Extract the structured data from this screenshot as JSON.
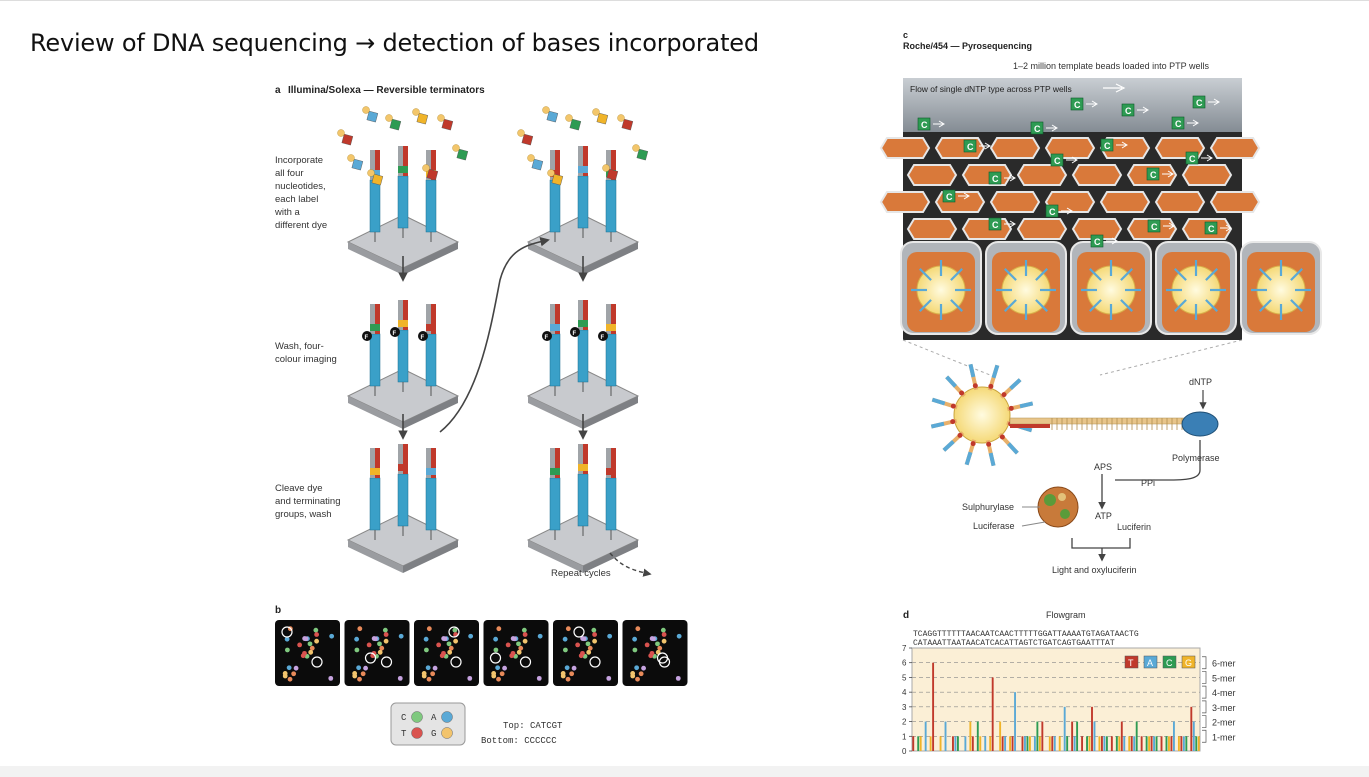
{
  "slide": {
    "title": "Review of DNA sequencing → detection of bases incorporated"
  },
  "panel_a": {
    "letter": "a",
    "heading": "Illumina/Solexa — Reversible terminators",
    "steps": [
      "Incorporate all four nucleotides, each label with a different dye",
      "Wash, four-colour imaging",
      "Cleave dye and terminating groups, wash"
    ],
    "repeat": "Repeat cycles",
    "base_letters": [
      "C",
      "A",
      "G",
      "T"
    ],
    "dye_letter": "F"
  },
  "panel_b": {
    "letter": "b",
    "legend": [
      {
        "base": "C",
        "color": "#7fc97f"
      },
      {
        "base": "A",
        "color": "#5aa9d6"
      },
      {
        "base": "T",
        "color": "#d9534f"
      },
      {
        "base": "G",
        "color": "#f2c46d"
      }
    ],
    "top_label": "Top: CATCGT",
    "bottom_label": "Bottom: CCCCCC"
  },
  "panel_c": {
    "letter": "c",
    "heading": "Roche/454 — Pyrosequencing",
    "beads_note": "1–2 million template beads loaded into PTP wells",
    "flow_note": "Flow of single dNTP type across PTP wells",
    "dntp_letter": "C",
    "labels": {
      "dntp": "dNTP",
      "polymerase": "Polymerase",
      "aps": "APS",
      "ppi": "PPi",
      "sulphurylase": "Sulphurylase",
      "luciferase": "Luciferase",
      "atp": "ATP",
      "luciferin": "Luciferin",
      "light": "Light and oxyluciferin"
    }
  },
  "panel_d": {
    "letter": "d",
    "title": "Flowgram",
    "seq_top": "TCAGGTTTTTTAACAATCAACTTTTTGGATTAAAATGTAGATAACTG",
    "seq_bottom": "CATAAATTAATAACATCACATTAGTCTGATCAGTGAATTTAT",
    "legend": [
      "T",
      "A",
      "C",
      "G"
    ],
    "mer_labels": [
      "6-mer",
      "5-mer",
      "4-mer",
      "3-mer",
      "2-mer",
      "1-mer"
    ],
    "y_ticks": [
      "0",
      "1",
      "2",
      "3",
      "4",
      "5",
      "6",
      "7"
    ]
  },
  "colors": {
    "T": "#c0392b",
    "A": "#5aa9d6",
    "C": "#2e9b53",
    "G": "#f0b429",
    "chart_bg": "#fbefd6",
    "bead": "#d9793a"
  },
  "chart_data": {
    "type": "bar",
    "title": "Flowgram",
    "flow_order": [
      "T",
      "A",
      "C",
      "G"
    ],
    "values": [
      1,
      0,
      1,
      1,
      0,
      2,
      0,
      1,
      6,
      0,
      0,
      1,
      0,
      2,
      0,
      0,
      1,
      1,
      1,
      0,
      0,
      1,
      0,
      2,
      1,
      0,
      2,
      1,
      0,
      1,
      0,
      1,
      5,
      0,
      0,
      2,
      1,
      1,
      0,
      1,
      1,
      4,
      0,
      0,
      1,
      1,
      1,
      1,
      0,
      1,
      2,
      1,
      2,
      0,
      0,
      1,
      1,
      1,
      0,
      1,
      0,
      3,
      1,
      0,
      2,
      1,
      2,
      0,
      1,
      0,
      1,
      1,
      3,
      2,
      0,
      1,
      1,
      1,
      1,
      0,
      1,
      0,
      1,
      1,
      2,
      1,
      0,
      1,
      1,
      1,
      2,
      0,
      1,
      0,
      1,
      1,
      1,
      1,
      1,
      0,
      1,
      0,
      1,
      1,
      1,
      2,
      0,
      1,
      1,
      1,
      1,
      0,
      3,
      2,
      1,
      1
    ],
    "ylim": [
      0,
      7
    ],
    "grid": true
  }
}
